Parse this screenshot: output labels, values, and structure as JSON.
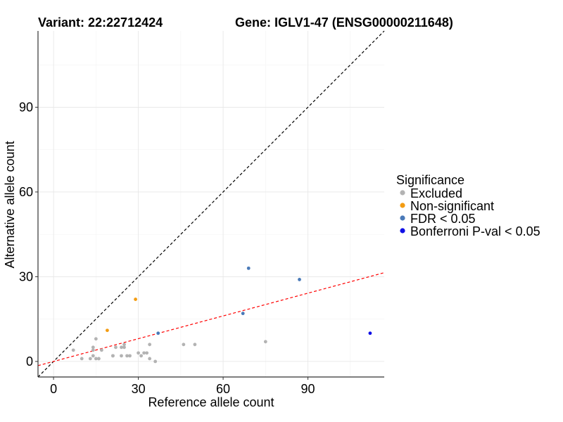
{
  "chart_data": {
    "type": "scatter",
    "title_left": "Variant: 22:22712424",
    "title_right": "Gene: IGLV1-47 (ENSG00000211648)",
    "xlabel": "Reference allele count",
    "ylabel": "Alternative allele count",
    "xlim": [
      -5.5,
      117
    ],
    "ylim": [
      -5.5,
      117
    ],
    "xticks": [
      0,
      30,
      60,
      90
    ],
    "yticks": [
      0,
      30,
      60,
      90
    ],
    "legend": {
      "title": "Significance",
      "position": "right",
      "items": [
        {
          "name": "Excluded",
          "color": "#b3b3b3"
        },
        {
          "name": "Non-significant",
          "color": "#f39c12"
        },
        {
          "name": "FDR < 0.05",
          "color": "#4a7ab8"
        },
        {
          "name": "Bonferroni P-val < 0.05",
          "color": "#1010e6"
        }
      ]
    },
    "series": [
      {
        "name": "Excluded",
        "points": [
          [
            7,
            4
          ],
          [
            10,
            1
          ],
          [
            13,
            1
          ],
          [
            14,
            5
          ],
          [
            14,
            4
          ],
          [
            14,
            2
          ],
          [
            15,
            8
          ],
          [
            15,
            1
          ],
          [
            16,
            1
          ],
          [
            16,
            1
          ],
          [
            17,
            4
          ],
          [
            21,
            2
          ],
          [
            21,
            2
          ],
          [
            22,
            5
          ],
          [
            24,
            2
          ],
          [
            24,
            5
          ],
          [
            25,
            5
          ],
          [
            25,
            6
          ],
          [
            26,
            2
          ],
          [
            27,
            2
          ],
          [
            30,
            3
          ],
          [
            31,
            2
          ],
          [
            32,
            3
          ],
          [
            33,
            3
          ],
          [
            34,
            1
          ],
          [
            34,
            6
          ],
          [
            36,
            0
          ],
          [
            46,
            6
          ],
          [
            50,
            6
          ],
          [
            75,
            7
          ]
        ]
      },
      {
        "name": "Non-significant",
        "points": [
          [
            19,
            11
          ],
          [
            29,
            22
          ]
        ]
      },
      {
        "name": "FDR < 0.05",
        "points": [
          [
            37,
            10
          ],
          [
            67,
            17
          ],
          [
            69,
            33
          ],
          [
            87,
            29
          ]
        ]
      },
      {
        "name": "Bonferroni P-val < 0.05",
        "points": [
          [
            112,
            10
          ]
        ]
      }
    ],
    "reference_lines": [
      {
        "name": "identity",
        "slope": 1,
        "intercept": 0,
        "color": "#000000",
        "style": "dashed"
      },
      {
        "name": "fit",
        "slope": 0.2686,
        "intercept": 0,
        "color": "#ff0000",
        "style": "dashed"
      }
    ]
  }
}
